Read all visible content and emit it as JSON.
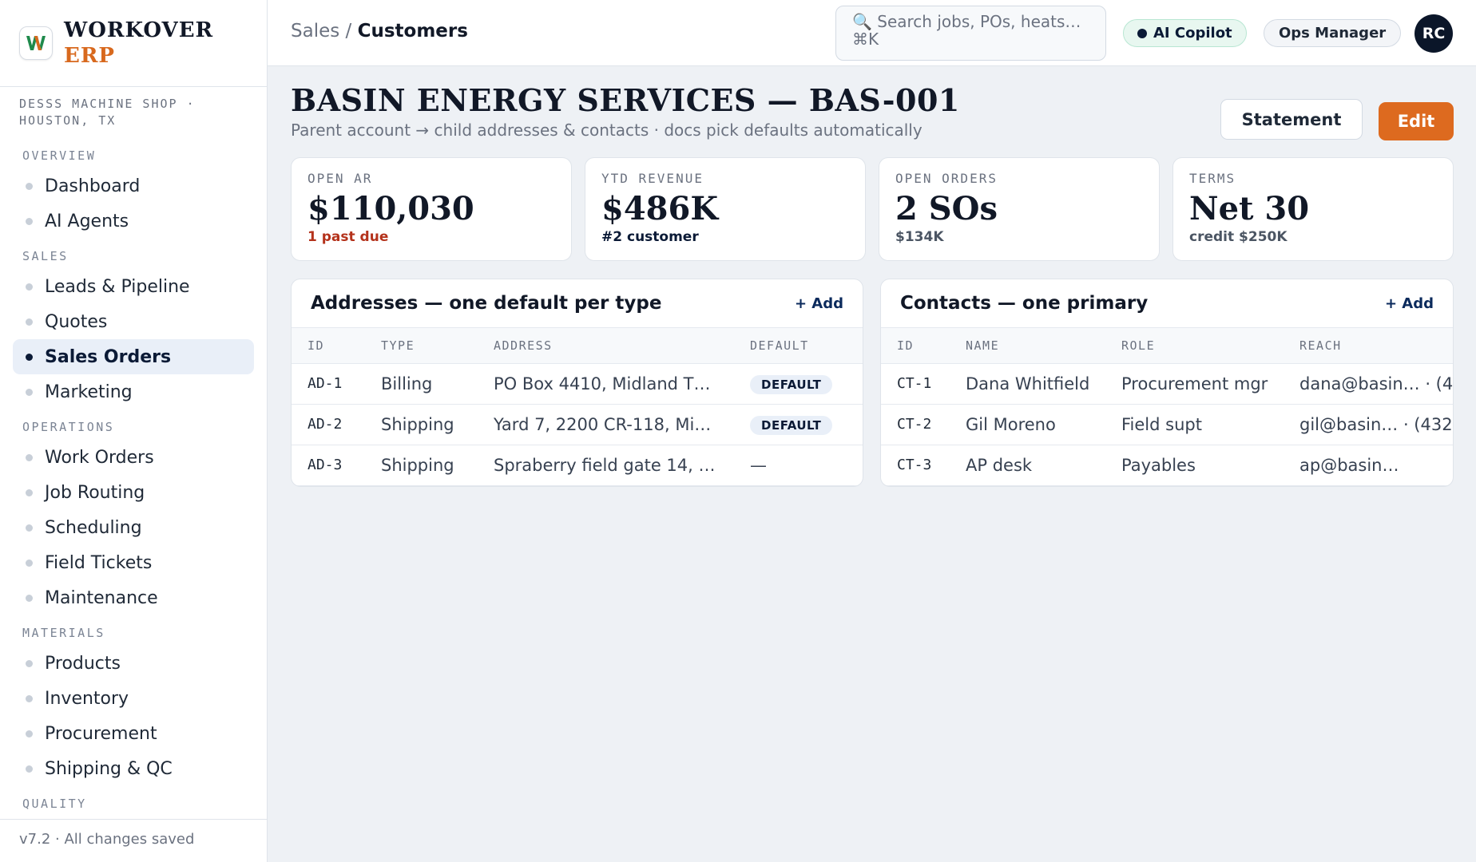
{
  "brand": {
    "logo_letter": "W",
    "name": "WORKOVER",
    "sub": "ERP"
  },
  "shop": "DESSS MACHINE SHOP · HOUSTON, TX",
  "nav": [
    {
      "section": "OVERVIEW",
      "items": [
        {
          "label": "Dashboard"
        },
        {
          "label": "AI Agents"
        }
      ]
    },
    {
      "section": "SALES",
      "items": [
        {
          "label": "Leads & Pipeline"
        },
        {
          "label": "Quotes"
        },
        {
          "label": "Sales Orders",
          "active": true
        },
        {
          "label": "Marketing"
        }
      ]
    },
    {
      "section": "OPERATIONS",
      "items": [
        {
          "label": "Work Orders"
        },
        {
          "label": "Job Routing"
        },
        {
          "label": "Scheduling"
        },
        {
          "label": "Field Tickets"
        },
        {
          "label": "Maintenance"
        }
      ]
    },
    {
      "section": "MATERIALS",
      "items": [
        {
          "label": "Products"
        },
        {
          "label": "Inventory"
        },
        {
          "label": "Procurement"
        },
        {
          "label": "Shipping & QC"
        }
      ]
    },
    {
      "section": "QUALITY",
      "items": []
    }
  ],
  "footer": "v7.2 · All changes saved",
  "header": {
    "crumb_parent": "Sales",
    "crumb_sep": "/",
    "crumb_current": "Customers",
    "search_placeholder": "🔍 Search jobs, POs, heats… ⌘K",
    "copilot": "AI Copilot",
    "role": "Ops Manager",
    "avatar": "RC"
  },
  "page": {
    "title": "BASIN ENERGY SERVICES — BAS-001",
    "subtitle": "Parent account → child addresses & contacts · docs pick defaults automatically",
    "statement_label": "Statement",
    "edit_label": "Edit"
  },
  "stats": [
    {
      "label": "OPEN AR",
      "value": "$110,030",
      "note": "1 past due",
      "tone": "warn"
    },
    {
      "label": "YTD REVENUE",
      "value": "$486K",
      "note": "#2 customer",
      "tone": "dark"
    },
    {
      "label": "OPEN ORDERS",
      "value": "2 SOs",
      "note": "$134K",
      "tone": "muted"
    },
    {
      "label": "TERMS",
      "value": "Net 30",
      "note": "credit $250K",
      "tone": "muted"
    }
  ],
  "addresses": {
    "title": "Addresses — one default per type",
    "add_label": "+ Add",
    "columns": [
      "ID",
      "TYPE",
      "ADDRESS",
      "DEFAULT"
    ],
    "rows": [
      {
        "id": "AD-1",
        "type": "Billing",
        "address": "PO Box 4410, Midland T…",
        "default": "DEFAULT"
      },
      {
        "id": "AD-2",
        "type": "Shipping",
        "address": "Yard 7, 2200 CR-118, Mi…",
        "default": "DEFAULT"
      },
      {
        "id": "AD-3",
        "type": "Shipping",
        "address": "Spraberry field gate 14, …",
        "default": "—"
      }
    ]
  },
  "contacts": {
    "title": "Contacts — one primary",
    "add_label": "+ Add",
    "columns": [
      "ID",
      "NAME",
      "ROLE",
      "REACH"
    ],
    "rows": [
      {
        "id": "CT-1",
        "name": "Dana Whitfield",
        "role": "Procurement mgr",
        "reach": "dana@basin… · (4"
      },
      {
        "id": "CT-2",
        "name": "Gil Moreno",
        "role": "Field supt",
        "reach": "gil@basin… · (432"
      },
      {
        "id": "CT-3",
        "name": "AP desk",
        "role": "Payables",
        "reach": "ap@basin…"
      }
    ]
  }
}
